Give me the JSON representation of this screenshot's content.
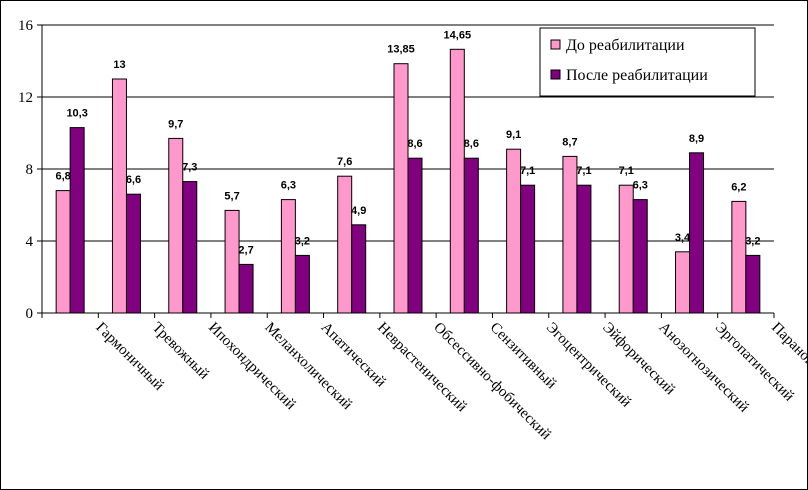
{
  "chart_data": {
    "type": "bar",
    "categories": [
      "Гармоничный",
      "Тревожный",
      "Ипохондрический",
      "Меланхолический",
      "Апатический",
      "Неврастенический",
      "Обсессивно-фобический",
      "Сензитивный",
      "Эгоцентрический",
      "Эйфорический",
      "Анозогнозический",
      "Эргопатический",
      "Паранойяльный"
    ],
    "series": [
      {
        "name": "До реабилитации",
        "color": "#ff99cc",
        "values": [
          6.8,
          13,
          9.7,
          5.7,
          6.3,
          7.6,
          13.85,
          14.65,
          9.1,
          8.7,
          7.1,
          3.4,
          6.2
        ],
        "labels": [
          "6,8",
          "13",
          "9,7",
          "5,7",
          "6,3",
          "7,6",
          "13,85",
          "14,65",
          "9,1",
          "8,7",
          "7,1",
          "3,4",
          "6,2"
        ]
      },
      {
        "name": "После реабилитации",
        "color": "#800080",
        "values": [
          10.3,
          6.6,
          7.3,
          2.7,
          3.2,
          4.9,
          8.6,
          8.6,
          7.1,
          7.1,
          6.3,
          8.9,
          3.2
        ],
        "labels": [
          "10,3",
          "6,6",
          "7,3",
          "2,7",
          "3,2",
          "4,9",
          "8,6",
          "8,6",
          "7,1",
          "7,1",
          "6,3",
          "8,9",
          "3,2"
        ]
      }
    ],
    "yticks": [
      "0",
      "4",
      "8",
      "12",
      "16"
    ],
    "ylim": [
      0,
      16
    ],
    "grid": true,
    "legend_position": "top-right",
    "title": "",
    "xlabel": "",
    "ylabel": ""
  }
}
